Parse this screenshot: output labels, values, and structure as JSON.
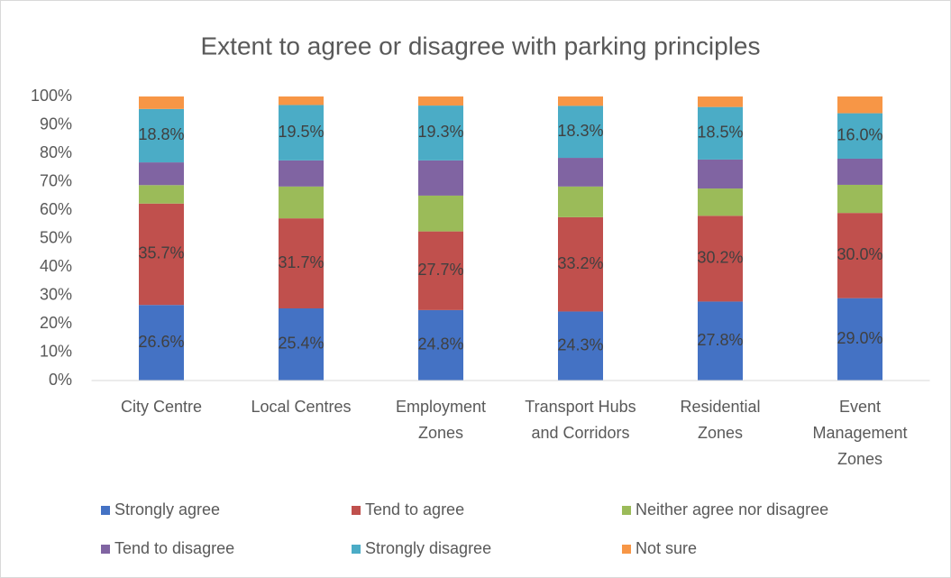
{
  "chart_data": {
    "type": "stacked_bar",
    "title": "Extent to agree or disagree with parking principles",
    "categories": [
      "City Centre",
      "Local Centres",
      "Employment Zones",
      "Transport Hubs and Corridors",
      "Residential Zones",
      "Event Management Zones"
    ],
    "series": [
      {
        "name": "Strongly agree",
        "color": "#4472c4",
        "values": [
          26.6,
          25.4,
          24.8,
          24.3,
          27.8,
          29.0
        ],
        "value_labels": [
          "26.6%",
          "25.4%",
          "24.8%",
          "24.3%",
          "27.8%",
          "29.0%"
        ]
      },
      {
        "name": "Tend to agree",
        "color": "#c0504d",
        "values": [
          35.7,
          31.7,
          27.7,
          33.2,
          30.2,
          30.0
        ],
        "value_labels": [
          "35.7%",
          "31.7%",
          "27.7%",
          "33.2%",
          "30.2%",
          "30.0%"
        ]
      },
      {
        "name": "Neither agree nor disagree",
        "color": "#9bbb59",
        "values": [
          6.5,
          11.2,
          12.6,
          10.8,
          9.6,
          9.9
        ]
      },
      {
        "name": "Tend to disagree",
        "color": "#8064a2",
        "values": [
          8.0,
          9.2,
          12.4,
          10.1,
          10.2,
          9.2
        ]
      },
      {
        "name": "Strongly disagree",
        "color": "#4bacc6",
        "values": [
          18.8,
          19.5,
          19.3,
          18.3,
          18.5,
          16.0
        ],
        "value_labels": [
          "18.8%",
          "19.5%",
          "19.3%",
          "18.3%",
          "18.5%",
          "16.0%"
        ]
      },
      {
        "name": "Not sure",
        "color": "#f79646",
        "values": [
          4.4,
          3.0,
          3.2,
          3.3,
          3.7,
          5.9
        ]
      }
    ],
    "ylim": [
      0,
      100
    ],
    "yticks": [
      {
        "value": 0,
        "label": "0%"
      },
      {
        "value": 10,
        "label": "10%"
      },
      {
        "value": 20,
        "label": "20%"
      },
      {
        "value": 30,
        "label": "30%"
      },
      {
        "value": 40,
        "label": "40%"
      },
      {
        "value": 50,
        "label": "50%"
      },
      {
        "value": 60,
        "label": "60%"
      },
      {
        "value": 70,
        "label": "70%"
      },
      {
        "value": 80,
        "label": "80%"
      },
      {
        "value": 90,
        "label": "90%"
      },
      {
        "value": 100,
        "label": "100%"
      }
    ],
    "grid": false,
    "legend": "bottom"
  }
}
